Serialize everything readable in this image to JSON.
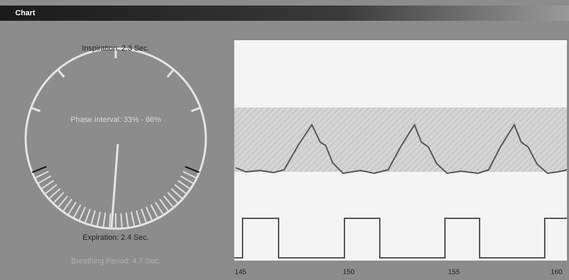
{
  "window": {
    "title": "Chart"
  },
  "gauge": {
    "inspiration": "Inspiration: 2.3 Sec.",
    "phase_interval": "Phase Interval: 33% - 66%",
    "expiration": "Expiration: 2.4 Sec.",
    "breathing_period": "Breathing Period: 4.7 Sec."
  },
  "plot": {
    "x_tick_labels": [
      "145",
      "150",
      "155",
      "160"
    ]
  }
}
